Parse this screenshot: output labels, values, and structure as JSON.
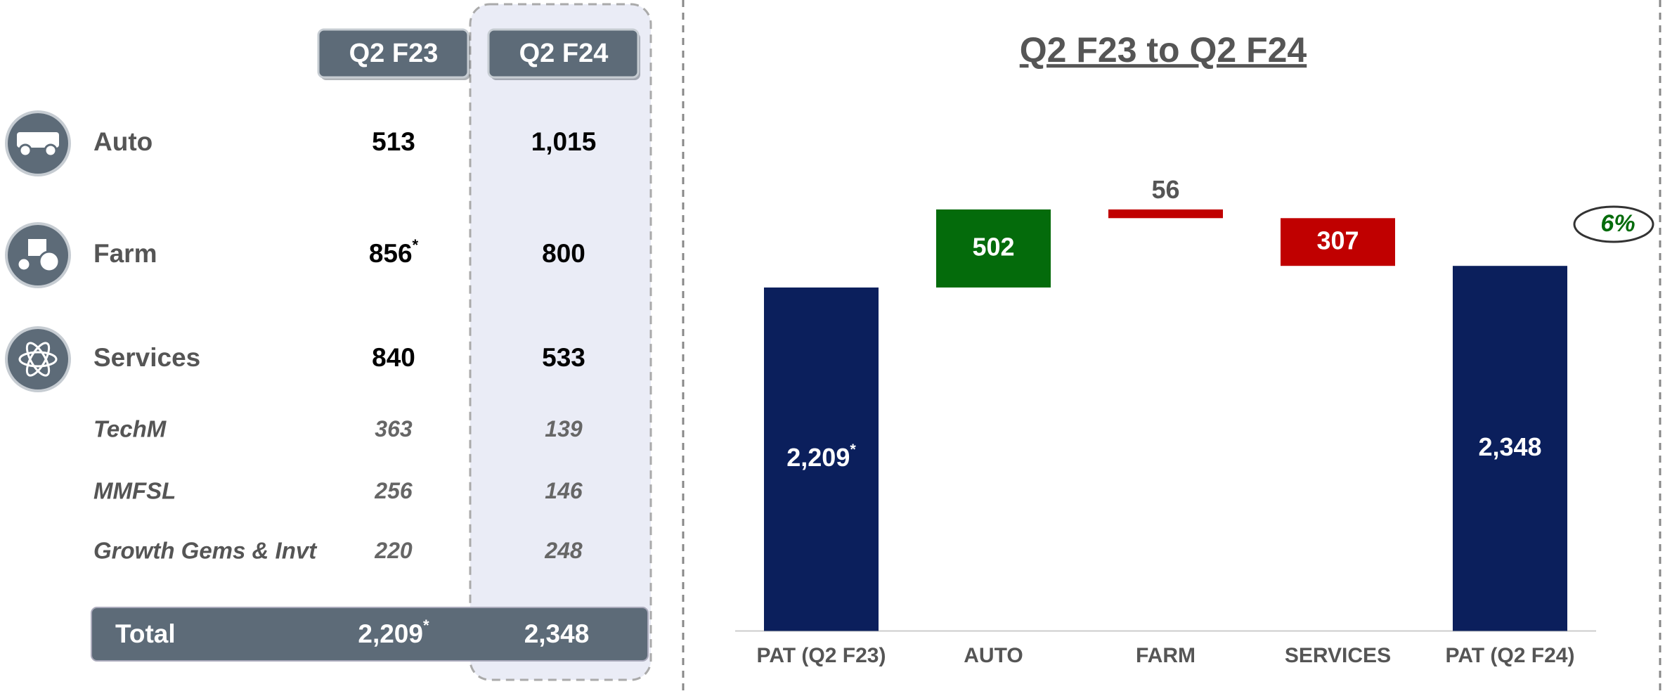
{
  "table": {
    "columns": [
      "Q2 F23",
      "Q2 F24"
    ],
    "rows": [
      {
        "label": "Auto",
        "values": [
          {
            "text": "513"
          },
          {
            "text": "1,015"
          }
        ]
      },
      {
        "label": "Farm",
        "values": [
          {
            "text": "856",
            "sup": "*"
          },
          {
            "text": "800"
          }
        ]
      },
      {
        "label": "Services",
        "values": [
          {
            "text": "840"
          },
          {
            "text": "533"
          }
        ]
      }
    ],
    "subrows": [
      {
        "label": "TechM",
        "values": [
          {
            "text": "363"
          },
          {
            "text": "139"
          }
        ]
      },
      {
        "label": "MMFSL",
        "values": [
          {
            "text": "256"
          },
          {
            "text": "146"
          }
        ]
      },
      {
        "label": "Growth Gems & Invt",
        "values": [
          {
            "text": "220"
          },
          {
            "text": "248"
          }
        ]
      }
    ],
    "total": {
      "label": "Total",
      "values": [
        {
          "text": "2,209",
          "sup": "*"
        },
        {
          "text": "2,348"
        }
      ]
    }
  },
  "chart_data": {
    "type": "waterfall",
    "title": "Q2 F23 to Q2 F24",
    "categories": [
      "PAT (Q2 F23)",
      "AUTO",
      "FARM",
      "SERVICES",
      "PAT (Q2 F24)"
    ],
    "values": [
      2209,
      502,
      -56,
      -307,
      2348
    ],
    "value_labels": [
      "2,209",
      "502",
      "56",
      "307",
      "2,348"
    ],
    "value_label_sups": [
      "*",
      null,
      null,
      null,
      null
    ],
    "is_total": [
      true,
      false,
      false,
      false,
      true
    ],
    "colors": [
      "#0b1f5c",
      "#046b0b",
      "#c00000",
      "#c00000",
      "#0b1f5c"
    ],
    "ylim": [
      0,
      3000
    ],
    "annotation": {
      "text": "6%",
      "color": "#046b0b"
    }
  }
}
